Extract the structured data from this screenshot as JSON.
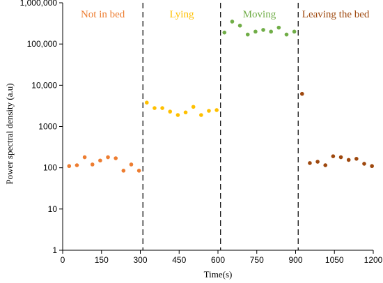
{
  "chart_data": {
    "type": "scatter",
    "title": "",
    "xlabel": "Time(s)",
    "ylabel": "Power spectral density  (a.u)",
    "xlim": [
      0,
      1200
    ],
    "ylim": [
      1,
      1000000
    ],
    "yscale": "log",
    "grid": false,
    "x_ticks": [
      0,
      150,
      300,
      450,
      600,
      750,
      900,
      1050,
      1200
    ],
    "x_tick_labels": [
      "0",
      "150",
      "300",
      "450",
      "600",
      "750",
      "900",
      "1050",
      "1200"
    ],
    "y_ticks": [
      1,
      10,
      100,
      1000,
      10000,
      100000,
      1000000
    ],
    "y_tick_labels": [
      "1",
      "10",
      "100",
      "1000",
      "10,000",
      "100,000",
      "1,000,000"
    ],
    "boundaries": [
      310,
      610,
      910
    ],
    "series": [
      {
        "name": "Not in  bed",
        "color": "#ED7D31",
        "x": [
          25,
          55,
          85,
          115,
          145,
          175,
          205,
          235,
          265,
          295
        ],
        "y": [
          110,
          115,
          180,
          120,
          150,
          180,
          170,
          85,
          120,
          85
        ]
      },
      {
        "name": "Lying",
        "color": "#FFC000",
        "x": [
          325,
          355,
          385,
          415,
          445,
          475,
          505,
          535,
          565,
          595
        ],
        "y": [
          3800,
          2800,
          2800,
          2300,
          1900,
          2200,
          3000,
          1900,
          2400,
          2500
        ]
      },
      {
        "name": "Moving",
        "color": "#70AD47",
        "x": [
          625,
          655,
          685,
          715,
          745,
          775,
          805,
          835,
          865,
          895
        ],
        "y": [
          190000,
          350000,
          280000,
          170000,
          200000,
          220000,
          200000,
          250000,
          170000,
          200000
        ]
      },
      {
        "name": "Leaving the bed",
        "color": "#9E480E",
        "x": [
          925,
          955,
          985,
          1015,
          1045,
          1075,
          1105,
          1135,
          1165,
          1195
        ],
        "y": [
          6200,
          130,
          140,
          115,
          190,
          180,
          155,
          165,
          125,
          110
        ]
      }
    ]
  }
}
